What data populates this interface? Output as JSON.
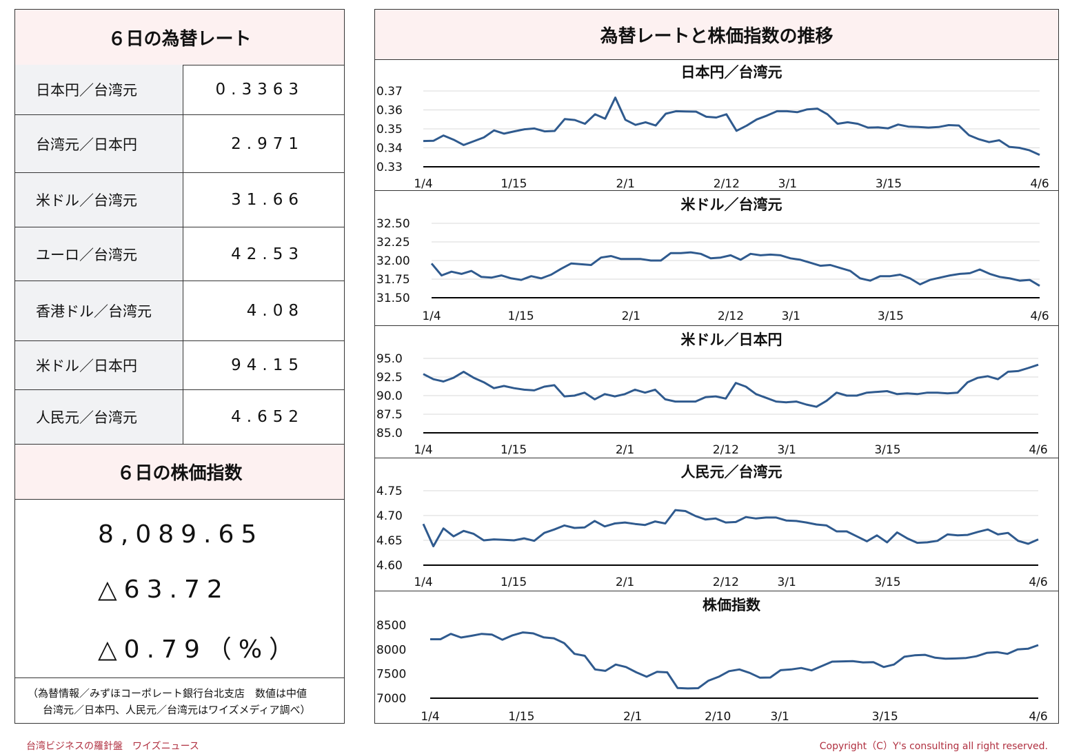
{
  "left_panel": {
    "rates_title": "６日の為替レート",
    "rates": [
      {
        "label": "日本円／台湾元",
        "value": "0.3363"
      },
      {
        "label": "台湾元／日本円",
        "value": "2.971"
      },
      {
        "label": "米ドル／台湾元",
        "value": "31.66"
      },
      {
        "label": "ユーロ／台湾元",
        "value": "42.53"
      },
      {
        "label": "香港ドル／台湾元",
        "value": "4.08"
      },
      {
        "label": "米ドル／日本円",
        "value": "94.15"
      },
      {
        "label": "人民元／台湾元",
        "value": "4.652"
      }
    ],
    "index_title": "６日の株価指数",
    "index_value": "8,089.65",
    "index_change": "△63.72",
    "index_change_pct": "△0.79（%）",
    "note_line1": "（為替情報／みずほコーポレート銀行台北支店　数値は中値",
    "note_line2": "台湾元／日本円、人民元／台湾元はワイズメディア調べ）"
  },
  "right_panel": {
    "title": "為替レートと株価指数の推移"
  },
  "footer": {
    "left": "台湾ビジネスの羅針盤　ワイズニュース",
    "right": "Copyright（C）Y's consulting all right reserved."
  },
  "colors": {
    "line": "#2f5a8e",
    "header_bg": "#fdf1f1",
    "label_bg": "#f1f2f4",
    "footer_text": "#b03040"
  },
  "chart_data": [
    {
      "type": "line",
      "title": "日本円／台湾元",
      "ylim": [
        0.33,
        0.37
      ],
      "yticks": [
        "0.33",
        "0.34",
        "0.35",
        "0.36",
        "0.37"
      ],
      "xticks": [
        "1/4",
        "1/15",
        "2/1",
        "2/12",
        "3/1",
        "3/15",
        "4/6"
      ],
      "grid": true,
      "values": [
        0.3436,
        0.3437,
        0.3465,
        0.3443,
        0.3415,
        0.3435,
        0.3455,
        0.3492,
        0.3475,
        0.3487,
        0.3498,
        0.3502,
        0.3487,
        0.3489,
        0.3552,
        0.3547,
        0.3527,
        0.3577,
        0.3554,
        0.3665,
        0.3548,
        0.3521,
        0.3535,
        0.3518,
        0.358,
        0.3593,
        0.3592,
        0.3591,
        0.3564,
        0.356,
        0.3577,
        0.349,
        0.3517,
        0.355,
        0.357,
        0.3593,
        0.3593,
        0.3588,
        0.3603,
        0.3607,
        0.3577,
        0.3527,
        0.3535,
        0.3527,
        0.3507,
        0.3508,
        0.3503,
        0.3523,
        0.3512,
        0.351,
        0.3507,
        0.351,
        0.352,
        0.3518,
        0.3467,
        0.3445,
        0.343,
        0.344,
        0.3405,
        0.34,
        0.3387,
        0.3363
      ]
    },
    {
      "type": "line",
      "title": "米ドル／台湾元",
      "ylim": [
        31.5,
        32.5
      ],
      "yticks": [
        "31.50",
        "31.75",
        "32.00",
        "32.25",
        "32.50"
      ],
      "xticks": [
        "1/4",
        "1/15",
        "2/1",
        "2/12",
        "3/1",
        "3/15",
        "4/6"
      ],
      "grid": true,
      "values": [
        31.96,
        31.8,
        31.85,
        31.82,
        31.86,
        31.78,
        31.77,
        31.8,
        31.76,
        31.74,
        31.79,
        31.76,
        31.81,
        31.89,
        31.96,
        31.95,
        31.94,
        32.04,
        32.06,
        32.02,
        32.02,
        32.02,
        32.0,
        32.0,
        32.1,
        32.1,
        32.11,
        32.09,
        32.03,
        32.04,
        32.07,
        32.01,
        32.09,
        32.07,
        32.08,
        32.07,
        32.03,
        32.01,
        31.97,
        31.93,
        31.94,
        31.9,
        31.86,
        31.76,
        31.73,
        31.79,
        31.79,
        31.81,
        31.76,
        31.68,
        31.74,
        31.77,
        31.8,
        31.82,
        31.83,
        31.88,
        31.82,
        31.78,
        31.76,
        31.73,
        31.74,
        31.66
      ]
    },
    {
      "type": "line",
      "title": "米ドル／日本円",
      "ylim": [
        85.0,
        95.0
      ],
      "yticks": [
        "85.0",
        "87.5",
        "90.0",
        "92.5",
        "95.0"
      ],
      "xticks": [
        "1/4",
        "1/15",
        "2/1",
        "2/12",
        "3/1",
        "3/15",
        "4/6"
      ],
      "grid": true,
      "values": [
        92.9,
        92.2,
        91.9,
        92.4,
        93.2,
        92.4,
        91.8,
        91.0,
        91.3,
        91.0,
        90.8,
        90.7,
        91.2,
        91.4,
        89.9,
        90.0,
        90.4,
        89.5,
        90.2,
        89.9,
        90.2,
        90.8,
        90.4,
        90.8,
        89.5,
        89.2,
        89.2,
        89.2,
        89.8,
        89.9,
        89.6,
        91.7,
        91.2,
        90.2,
        89.7,
        89.2,
        89.1,
        89.2,
        88.8,
        88.5,
        89.3,
        90.4,
        90.0,
        90.0,
        90.4,
        90.5,
        90.6,
        90.2,
        90.3,
        90.2,
        90.4,
        90.4,
        90.3,
        90.4,
        91.8,
        92.4,
        92.6,
        92.2,
        93.2,
        93.3,
        93.7,
        94.15
      ]
    },
    {
      "type": "line",
      "title": "人民元／台湾元",
      "ylim": [
        4.6,
        4.75
      ],
      "yticks": [
        "4.60",
        "4.65",
        "4.70",
        "4.75"
      ],
      "xticks": [
        "1/4",
        "1/15",
        "2/1",
        "2/12",
        "3/1",
        "3/15",
        "4/6"
      ],
      "grid": true,
      "values": [
        4.683,
        4.638,
        4.674,
        4.658,
        4.669,
        4.663,
        4.65,
        4.652,
        4.651,
        4.65,
        4.654,
        4.649,
        4.665,
        4.672,
        4.68,
        4.675,
        4.676,
        4.689,
        4.678,
        4.684,
        4.686,
        4.683,
        4.681,
        4.688,
        4.684,
        4.711,
        4.709,
        4.699,
        4.692,
        4.694,
        4.686,
        4.687,
        4.697,
        4.694,
        4.696,
        4.696,
        4.69,
        4.689,
        4.686,
        4.682,
        4.68,
        4.668,
        4.668,
        4.658,
        4.648,
        4.66,
        4.646,
        4.666,
        4.654,
        4.645,
        4.646,
        4.649,
        4.662,
        4.66,
        4.661,
        4.667,
        4.672,
        4.662,
        4.665,
        4.649,
        4.643,
        4.652
      ]
    },
    {
      "type": "line",
      "title": "株価指数",
      "ylim": [
        7000,
        8500
      ],
      "yticks": [
        "7000",
        "7500",
        "8000",
        "8500"
      ],
      "xticks": [
        "1/4",
        "1/15",
        "2/1",
        "2/10",
        "3/1",
        "3/15",
        "4/6"
      ],
      "grid": false,
      "values": [
        8210,
        8210,
        8320,
        8245,
        8280,
        8320,
        8305,
        8200,
        8290,
        8350,
        8330,
        8250,
        8230,
        8130,
        7910,
        7870,
        7590,
        7560,
        7690,
        7640,
        7530,
        7440,
        7540,
        7530,
        7210,
        7200,
        7205,
        7360,
        7440,
        7555,
        7590,
        7520,
        7420,
        7425,
        7575,
        7590,
        7620,
        7570,
        7660,
        7750,
        7755,
        7760,
        7735,
        7740,
        7640,
        7690,
        7850,
        7880,
        7890,
        7830,
        7810,
        7815,
        7825,
        7860,
        7930,
        7945,
        7910,
        8000,
        8015,
        8089.65
      ]
    }
  ]
}
